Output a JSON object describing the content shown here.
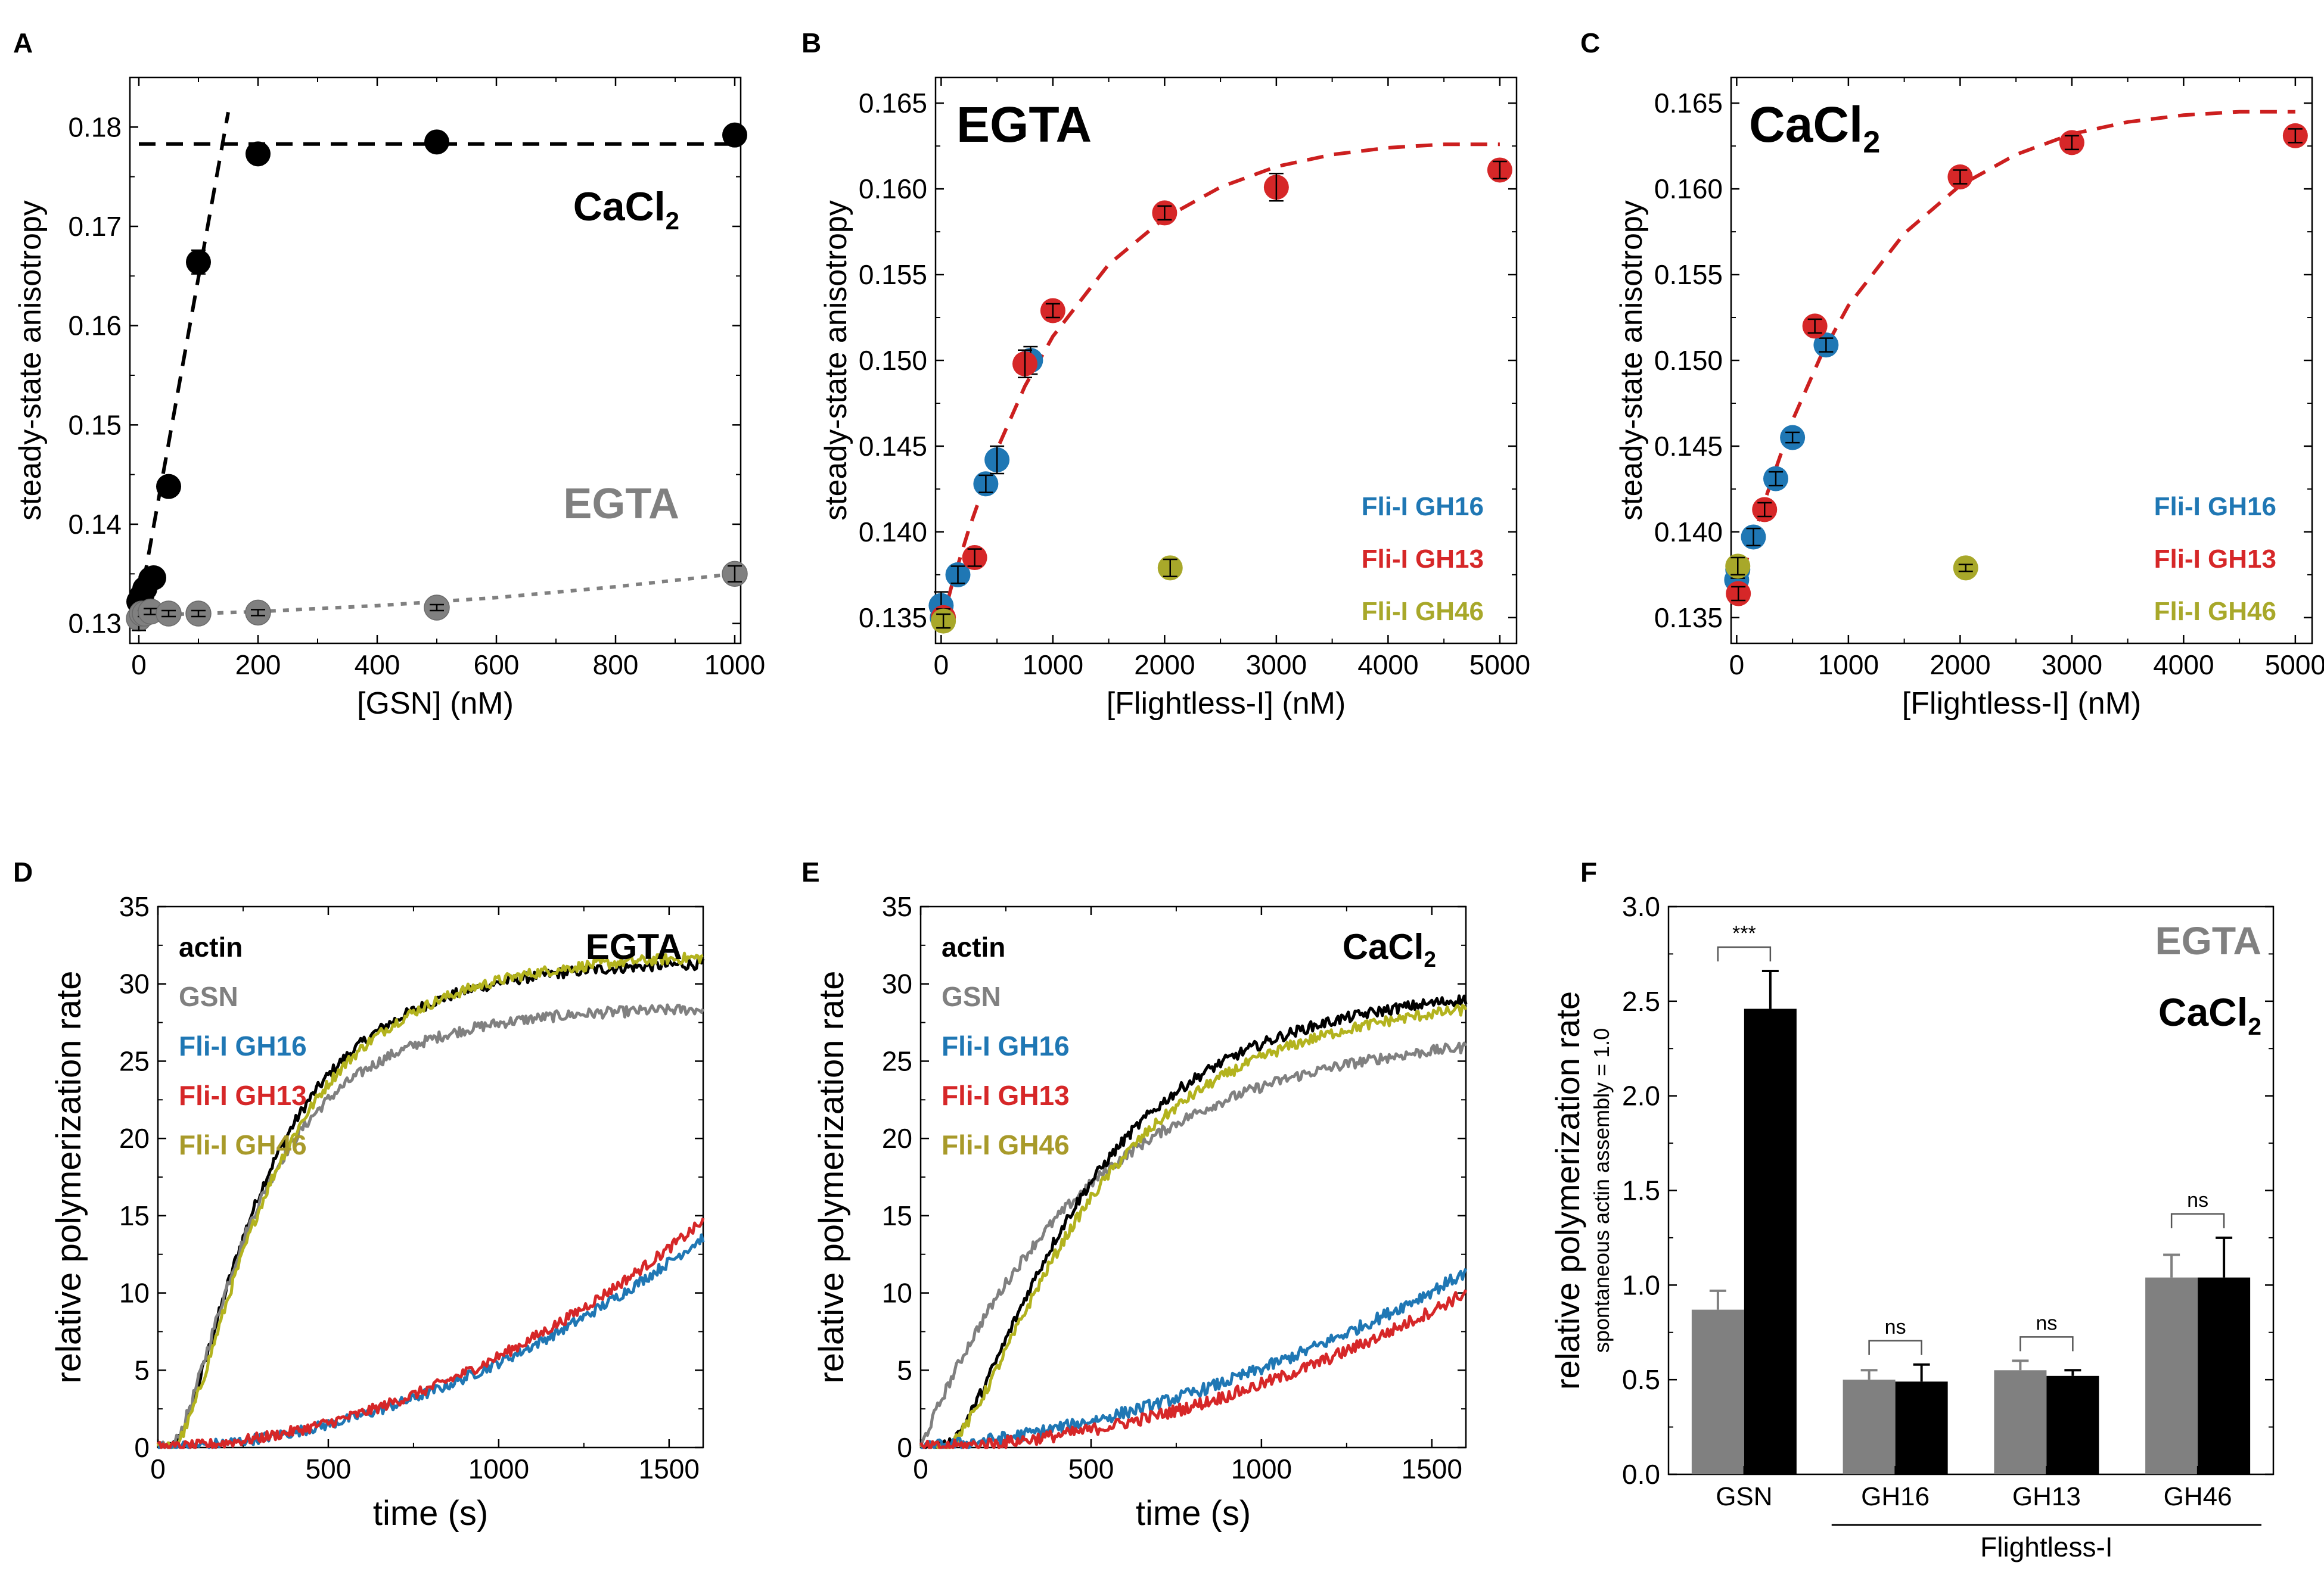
{
  "colors": {
    "black": "#000000",
    "gray": "#808080",
    "blue": "#1F77B4",
    "red": "#D62728",
    "olive": "#A8A82A",
    "olive_line": "#B3B31E",
    "olive_text": "#A89A2A",
    "fit_red": "#CC1F1F"
  },
  "chart_data": [
    {
      "panel": "A",
      "type": "scatter",
      "xlabel": "[GSN] (nM)",
      "ylabel": "steady-state anisotropy",
      "xlim": [
        -15,
        1010
      ],
      "ylim": [
        0.128,
        0.185
      ],
      "xticks": [
        0,
        200,
        400,
        600,
        800,
        1000
      ],
      "yticks": [
        0.13,
        0.14,
        0.15,
        0.16,
        0.17,
        0.18
      ],
      "ytick_labels": [
        "0.13",
        "0.14",
        "0.15",
        "0.16",
        "0.17",
        "0.18"
      ],
      "annotations": [
        {
          "text": "CaCl",
          "sub": "2",
          "color": "black"
        },
        {
          "text": "EGTA",
          "color": "gray"
        }
      ],
      "series": [
        {
          "name": "CaCl2",
          "color": "black",
          "x": [
            0,
            5,
            10,
            20,
            25,
            50,
            100,
            200,
            500,
            1000
          ],
          "y": [
            0.1322,
            0.1328,
            0.1335,
            0.1345,
            0.1346,
            0.1438,
            0.1664,
            0.1773,
            0.1785,
            0.1792
          ],
          "err": [
            0.0003,
            0.0003,
            0.0003,
            0.0003,
            0.0003,
            0.0003,
            0.0012,
            0.0003,
            0.0003,
            0.0003
          ]
        },
        {
          "name": "EGTA",
          "color": "gray",
          "x": [
            0,
            5,
            10,
            20,
            50,
            100,
            200,
            500,
            1000
          ],
          "y": [
            0.1305,
            0.131,
            0.131,
            0.1312,
            0.131,
            0.131,
            0.1311,
            0.1316,
            0.135
          ],
          "err": [
            0.0012,
            0.0003,
            0.0003,
            0.0003,
            0.0003,
            0.0003,
            0.0003,
            0.0003,
            0.0008
          ]
        }
      ],
      "fits": [
        {
          "color": "black",
          "style": "dashed",
          "x": [
            0,
            150
          ],
          "y": [
            0.1315,
            0.1815
          ]
        },
        {
          "color": "black",
          "style": "dashed",
          "x": [
            0,
            1010
          ],
          "y": [
            0.1783,
            0.1783
          ]
        },
        {
          "color": "gray",
          "style": "dotted",
          "x": [
            0,
            100,
            200,
            400,
            600,
            800,
            1000
          ],
          "y": [
            0.1308,
            0.131,
            0.1312,
            0.1318,
            0.1326,
            0.1337,
            0.135
          ]
        }
      ]
    },
    {
      "panel": "B",
      "type": "scatter",
      "xlabel": "[Flightless-I] (nM)",
      "ylabel": "steady-state anisotropy",
      "xlim": [
        -50,
        5150
      ],
      "ylim": [
        0.1335,
        0.1665
      ],
      "xticks": [
        0,
        1000,
        2000,
        3000,
        4000,
        5000
      ],
      "yticks": [
        0.135,
        0.14,
        0.145,
        0.15,
        0.155,
        0.16,
        0.165
      ],
      "ytick_labels": [
        "0.135",
        "0.140",
        "0.145",
        "0.150",
        "0.155",
        "0.160",
        "0.165"
      ],
      "annotations": [
        {
          "text": "EGTA",
          "color": "black"
        }
      ],
      "legend": [
        "Fli-I GH16",
        "Fli-I GH13",
        "Fli-I GH46"
      ],
      "series": [
        {
          "name": "Fli-I GH16",
          "color": "blue",
          "x": [
            0,
            10,
            150,
            400,
            500,
            800
          ],
          "y": [
            0.1357,
            0.135,
            0.1375,
            0.1428,
            0.1442,
            0.15
          ],
          "err": [
            0.0008,
            0.0005,
            0.0005,
            0.0005,
            0.0008,
            0.0008
          ]
        },
        {
          "name": "Fli-I GH13",
          "color": "red",
          "x": [
            20,
            300,
            750,
            1000,
            2000,
            3000,
            5000
          ],
          "y": [
            0.135,
            0.1385,
            0.1498,
            0.1529,
            0.1586,
            0.1601,
            0.1611
          ],
          "err": [
            0.0005,
            0.0005,
            0.0008,
            0.0004,
            0.0004,
            0.0008,
            0.0005
          ]
        },
        {
          "name": "Fli-I GH46",
          "color": "olive",
          "x": [
            20,
            2050
          ],
          "y": [
            0.1348,
            0.1379
          ],
          "err": [
            0.0004,
            0.0005
          ]
        }
      ],
      "fits": [
        {
          "color": "fit_red",
          "style": "dashed",
          "x": [
            0,
            100,
            250,
            500,
            750,
            1000,
            1500,
            2000,
            2500,
            3000,
            3500,
            4000,
            4500,
            5000
          ],
          "y": [
            0.1345,
            0.137,
            0.1402,
            0.1448,
            0.1485,
            0.1514,
            0.1556,
            0.1583,
            0.1601,
            0.1613,
            0.162,
            0.1624,
            0.1626,
            0.1626
          ]
        }
      ]
    },
    {
      "panel": "C",
      "type": "scatter",
      "xlabel": "[Flightless-I] (nM)",
      "ylabel": "steady-state anisotropy",
      "xlim": [
        -50,
        5150
      ],
      "ylim": [
        0.1335,
        0.1665
      ],
      "xticks": [
        0,
        1000,
        2000,
        3000,
        4000,
        5000
      ],
      "yticks": [
        0.135,
        0.14,
        0.145,
        0.15,
        0.155,
        0.16,
        0.165
      ],
      "ytick_labels": [
        "0.135",
        "0.140",
        "0.145",
        "0.150",
        "0.155",
        "0.160",
        "0.165"
      ],
      "annotations": [
        {
          "text": "CaCl",
          "sub": "2",
          "color": "black"
        }
      ],
      "legend": [
        "Fli-I GH16",
        "Fli-I GH13",
        "Fli-I GH46"
      ],
      "series": [
        {
          "name": "Fli-I GH16",
          "color": "blue",
          "x": [
            0,
            10,
            150,
            350,
            500,
            800
          ],
          "y": [
            0.1372,
            0.1378,
            0.1397,
            0.1431,
            0.1455,
            0.1509
          ],
          "err": [
            0.0008,
            0.0005,
            0.0005,
            0.0004,
            0.0003,
            0.0004
          ]
        },
        {
          "name": "Fli-I GH13",
          "color": "red",
          "x": [
            15,
            250,
            700,
            2000,
            3000,
            5000
          ],
          "y": [
            0.1364,
            0.1413,
            0.152,
            0.1607,
            0.1627,
            0.1631
          ],
          "err": [
            0.0004,
            0.0004,
            0.0004,
            0.0004,
            0.0004,
            0.0004
          ]
        },
        {
          "name": "Fli-I GH46",
          "color": "olive",
          "x": [
            10,
            2050
          ],
          "y": [
            0.138,
            0.1379
          ],
          "err": [
            0.0005,
            0.0002
          ]
        }
      ],
      "fits": [
        {
          "color": "fit_red",
          "style": "dashed",
          "x": [
            0,
            100,
            250,
            500,
            750,
            1000,
            1500,
            2000,
            2500,
            3000,
            3500,
            4000,
            4500,
            5000
          ],
          "y": [
            0.136,
            0.1386,
            0.1418,
            0.1465,
            0.1502,
            0.1532,
            0.1574,
            0.1602,
            0.162,
            0.1632,
            0.1639,
            0.1643,
            0.1645,
            0.1645
          ]
        }
      ]
    },
    {
      "panel": "D",
      "type": "line",
      "xlabel": "time (s)",
      "ylabel": "relative polymerization rate",
      "xlim": [
        0,
        1600
      ],
      "ylim": [
        0,
        35
      ],
      "xticks": [
        0,
        500,
        1000,
        1500
      ],
      "yticks": [
        0,
        5,
        10,
        15,
        20,
        25,
        30,
        35
      ],
      "ytick_labels": [
        "0",
        "5",
        "10",
        "15",
        "20",
        "25",
        "30",
        "35"
      ],
      "annotations": [
        {
          "text": "EGTA",
          "color": "black"
        }
      ],
      "legend": [
        "actin",
        "GSN",
        "Fli-I GH16",
        "Fli-I GH13",
        "Fli-I GH46"
      ],
      "legend_colors": [
        "black",
        "gray",
        "blue",
        "red",
        "olive_text"
      ],
      "series": [
        {
          "name": "actin",
          "color": "black",
          "kind": "sigmoid",
          "amp": 31.5,
          "k": 0.0032,
          "lag": 110,
          "noise": 0.35
        },
        {
          "name": "GSN",
          "color": "gray",
          "kind": "sigmoid",
          "amp": 28.5,
          "k": 0.0034,
          "lag": 100,
          "noise": 0.35
        },
        {
          "name": "Fli-I GH46",
          "color": "olive_line",
          "kind": "sigmoid",
          "amp": 32.0,
          "k": 0.003,
          "lag": 120,
          "noise": 0.35
        },
        {
          "name": "Fli-I GH16",
          "color": "blue",
          "kind": "poly",
          "a": 5e-06,
          "b": 0.0005,
          "noise": 0.35
        },
        {
          "name": "Fli-I GH13",
          "color": "red",
          "kind": "poly",
          "a": 5.4e-06,
          "b": 0.0005,
          "noise": 0.35
        }
      ]
    },
    {
      "panel": "E",
      "type": "line",
      "xlabel": "time (s)",
      "ylabel": "relative polymerization rate",
      "xlim": [
        0,
        1600
      ],
      "ylim": [
        0,
        35
      ],
      "xticks": [
        0,
        500,
        1000,
        1500
      ],
      "yticks": [
        0,
        5,
        10,
        15,
        20,
        25,
        30,
        35
      ],
      "ytick_labels": [
        "0",
        "5",
        "10",
        "15",
        "20",
        "25",
        "30",
        "35"
      ],
      "annotations": [
        {
          "text": "CaCl",
          "sub": "2",
          "color": "black"
        }
      ],
      "legend": [
        "actin",
        "GSN",
        "Fli-I GH16",
        "Fli-I GH13",
        "Fli-I GH46"
      ],
      "legend_colors": [
        "black",
        "gray",
        "blue",
        "red",
        "olive_text"
      ],
      "series": [
        {
          "name": "GSN",
          "color": "gray",
          "kind": "exp",
          "amp": 27.0,
          "k": 0.002,
          "noise": 0.35
        },
        {
          "name": "actin",
          "color": "black",
          "kind": "sigmoid",
          "amp": 30.0,
          "k": 0.0022,
          "lag": 180,
          "noise": 0.35
        },
        {
          "name": "Fli-I GH46",
          "color": "olive_line",
          "kind": "sigmoid",
          "amp": 29.5,
          "k": 0.0021,
          "lag": 190,
          "noise": 0.35
        },
        {
          "name": "Fli-I GH16",
          "color": "blue",
          "kind": "poly",
          "a": 3.3e-06,
          "b": 0.0018,
          "noise": 0.4
        },
        {
          "name": "Fli-I GH13",
          "color": "red",
          "kind": "poly",
          "a": 3.6e-06,
          "b": 0.0005,
          "noise": 0.4
        }
      ]
    },
    {
      "panel": "F",
      "type": "bar",
      "ylabel": "relative polymerization rate",
      "ylabel2": "spontaneous actin assembly = 1.0",
      "ylim": [
        0,
        3.0
      ],
      "yticks": [
        0,
        0.5,
        1.0,
        1.5,
        2.0,
        2.5,
        3.0
      ],
      "ytick_labels": [
        "0.0",
        "0.5",
        "1.0",
        "1.5",
        "2.0",
        "2.5",
        "3.0"
      ],
      "categories": [
        "GSN",
        "GH16",
        "GH13",
        "GH46"
      ],
      "group_label": "Flightless-I",
      "annotations": [
        {
          "text": "EGTA",
          "color": "gray"
        },
        {
          "text": "CaCl",
          "sub": "2",
          "color": "black"
        }
      ],
      "significance": [
        "***",
        "ns",
        "ns",
        "ns"
      ],
      "series": [
        {
          "name": "EGTA",
          "color": "gray",
          "values": [
            0.87,
            0.5,
            0.55,
            1.04
          ],
          "err": [
            0.1,
            0.05,
            0.05,
            0.12
          ]
        },
        {
          "name": "CaCl2",
          "color": "black",
          "values": [
            2.46,
            0.49,
            0.52,
            1.04
          ],
          "err": [
            0.2,
            0.09,
            0.03,
            0.21
          ]
        }
      ]
    }
  ]
}
